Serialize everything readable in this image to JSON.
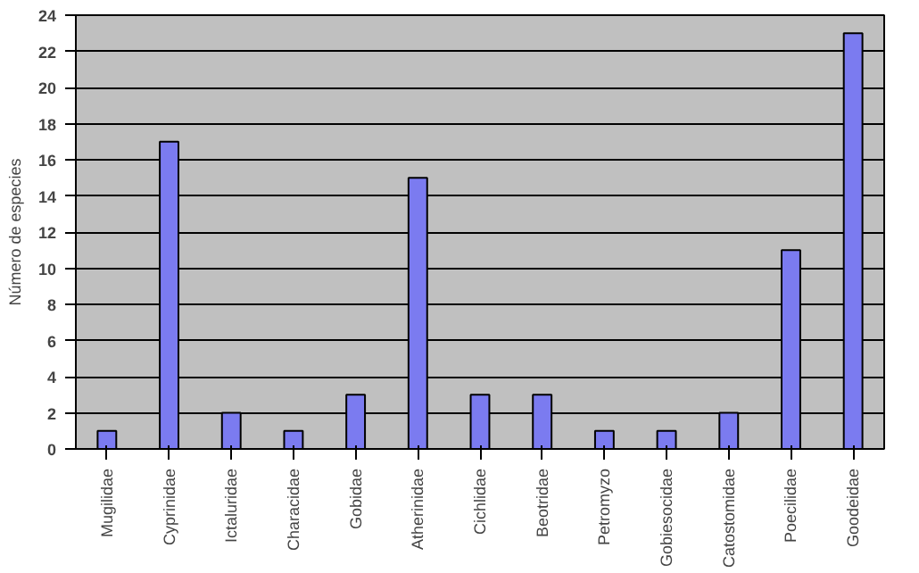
{
  "chart_data": {
    "type": "bar",
    "ylabel": "Número de especies",
    "categories": [
      "Mugilidae",
      "Cyprinidae",
      "Ictaluridae",
      "Characidae",
      "Gobidae",
      "Atherinidae",
      "Cichlidae",
      "Beotridae",
      "Petromyzo",
      "Gobiesocidae",
      "Catostomidae",
      "Poecilidae",
      "Goodeidae"
    ],
    "values": [
      1,
      17,
      2,
      1,
      3,
      15,
      3,
      3,
      1,
      1,
      2,
      11,
      23
    ],
    "color": "#7b7bf0",
    "ylim": [
      0,
      24
    ],
    "yticks": [
      0,
      2,
      4,
      6,
      8,
      10,
      12,
      14,
      16,
      18,
      20,
      22,
      24
    ],
    "grid": "y"
  }
}
